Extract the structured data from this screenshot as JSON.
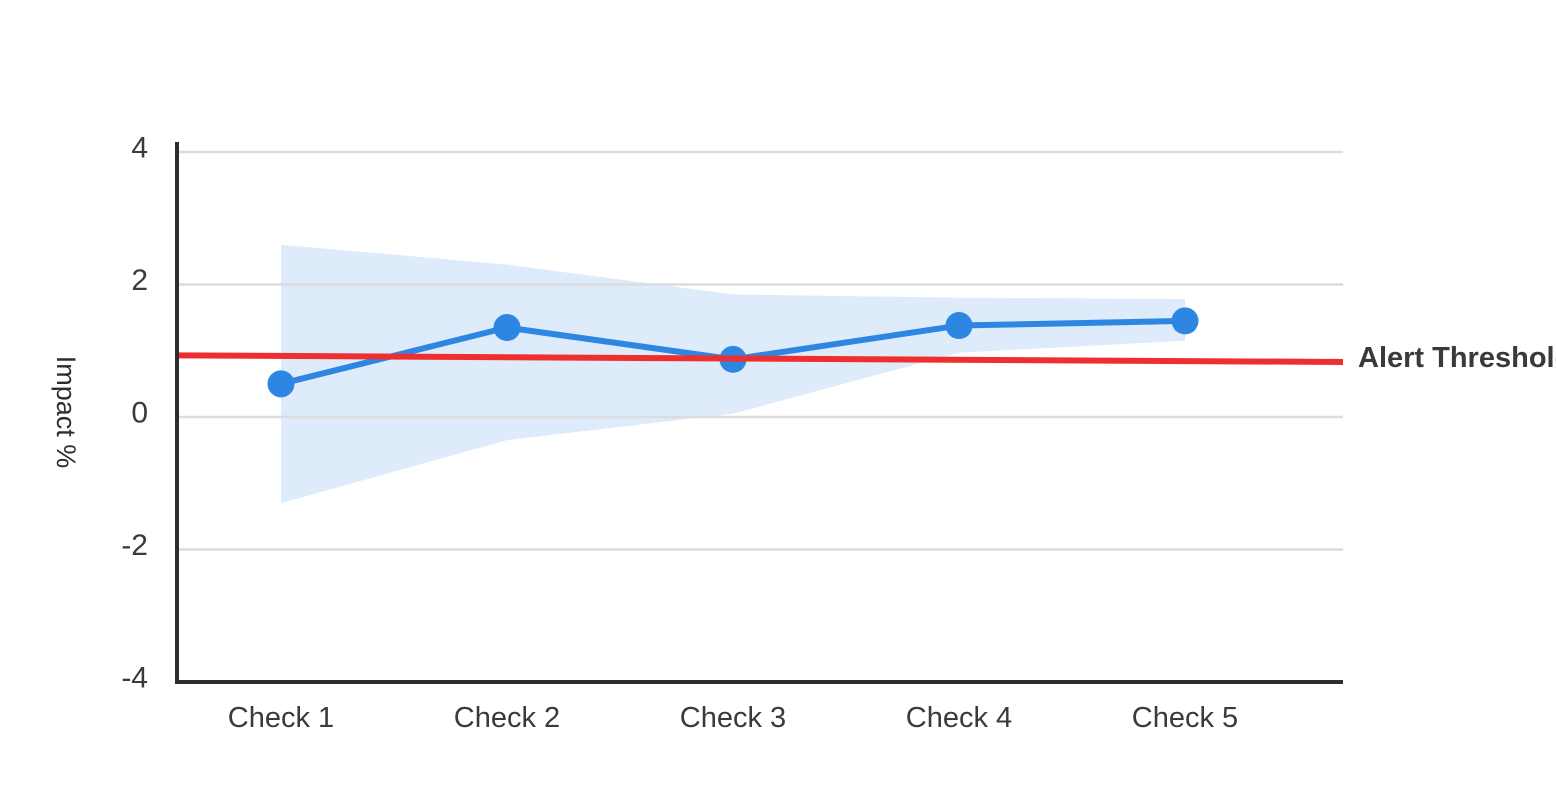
{
  "chart_data": {
    "type": "line",
    "title": "",
    "categories": [
      "Check 1",
      "Check 2",
      "Check 3",
      "Check 4",
      "Check 5"
    ],
    "series": [
      {
        "name": "Impact",
        "color": "#2e86e3",
        "marker": "circle",
        "values": [
          0.5,
          1.35,
          0.87,
          1.38,
          1.45
        ]
      }
    ],
    "confidence_band": {
      "color": "#ddebfb",
      "upper": [
        2.6,
        2.3,
        1.85,
        1.8,
        1.78
      ],
      "lower": [
        -1.3,
        -0.35,
        0.05,
        0.97,
        1.15
      ]
    },
    "threshold": {
      "label": "Alert Threshold",
      "color": "#ee2f2f",
      "start_value": 0.93,
      "end_value": 0.83
    },
    "xlabel": "",
    "ylabel": "Impact %",
    "yticks": [
      4,
      2,
      0,
      -2,
      -4
    ],
    "ylim": [
      -4,
      4.15
    ],
    "grid": true,
    "legend_position": "none",
    "colors": {
      "background": "#ffffff",
      "axis": "#2d2d2d",
      "gridline": "#dcdcdc",
      "tick_text": "#3a3a3a",
      "threshold_text": "#3a3a3a"
    }
  }
}
